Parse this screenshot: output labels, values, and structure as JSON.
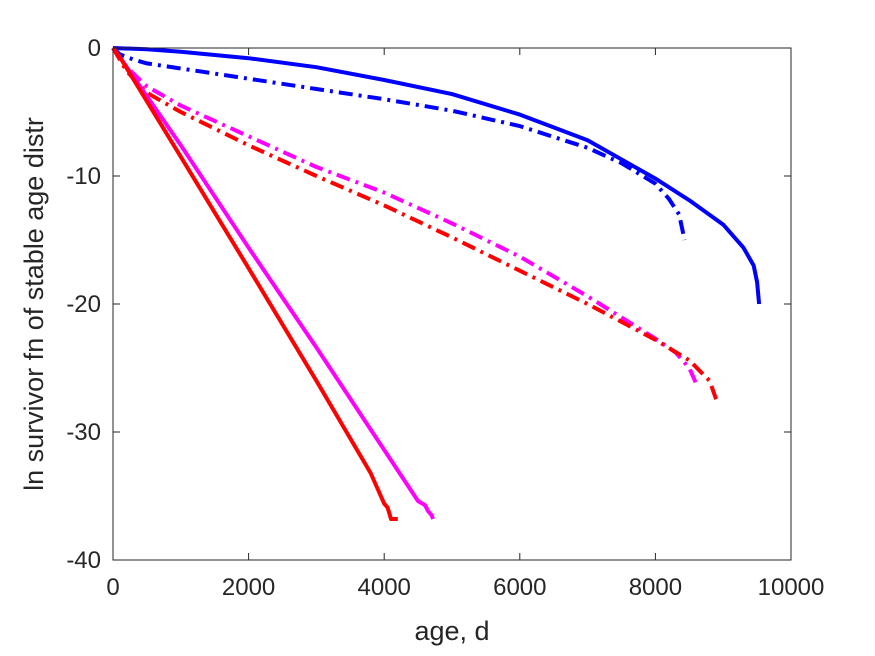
{
  "chart_data": {
    "type": "line",
    "title": "",
    "xlabel": "age, d",
    "ylabel": "ln survivor fn of stable age distr",
    "xlim": [
      0,
      10000
    ],
    "ylim": [
      -40,
      0
    ],
    "xticks": [
      0,
      2000,
      4000,
      6000,
      8000,
      10000
    ],
    "yticks": [
      -40,
      -30,
      -20,
      -10,
      0
    ],
    "xtick_labels": [
      "0",
      "2000",
      "4000",
      "6000",
      "8000",
      "10000"
    ],
    "ytick_labels": [
      "-40",
      "-30",
      "-20",
      "-10",
      "0"
    ],
    "grid": false,
    "legend": "none",
    "series": [
      {
        "color": "#0000ff",
        "style": "solid",
        "x": [
          0,
          500,
          1000,
          2000,
          3000,
          4000,
          5000,
          6000,
          7000,
          8000,
          8500,
          9000,
          9300,
          9450,
          9500,
          9530
        ],
        "y": [
          0,
          -0.1,
          -0.3,
          -0.8,
          -1.5,
          -2.5,
          -3.6,
          -5.2,
          -7.2,
          -10.2,
          -11.9,
          -13.8,
          -15.6,
          -17.0,
          -18.3,
          -20.0
        ]
      },
      {
        "color": "#0000ff",
        "style": "dashdot",
        "x": [
          0,
          100,
          300,
          500,
          1000,
          2000,
          3000,
          4000,
          5000,
          6000,
          7000,
          7500,
          8000,
          8200,
          8350,
          8430
        ],
        "y": [
          0,
          -0.5,
          -0.9,
          -1.2,
          -1.6,
          -2.4,
          -3.2,
          -4.0,
          -4.9,
          -6.1,
          -7.8,
          -9.0,
          -10.6,
          -11.8,
          -13.0,
          -15.0
        ]
      },
      {
        "color": "#ff00ff",
        "style": "dashdot",
        "x": [
          0,
          200,
          500,
          1000,
          2000,
          3000,
          4000,
          5000,
          6000,
          7000,
          8000,
          8300,
          8500,
          8600
        ],
        "y": [
          0,
          -1.5,
          -3.0,
          -4.5,
          -6.9,
          -9.3,
          -11.3,
          -13.7,
          -16.3,
          -19.4,
          -22.7,
          -23.8,
          -25.0,
          -26.2
        ]
      },
      {
        "color": "#ff0000",
        "style": "dashdot",
        "x": [
          0,
          200,
          500,
          1000,
          2000,
          3000,
          4000,
          5000,
          6000,
          7000,
          8000,
          8500,
          8800,
          8900
        ],
        "y": [
          0,
          -1.8,
          -3.5,
          -5.0,
          -7.6,
          -10.0,
          -12.3,
          -14.8,
          -17.4,
          -20.0,
          -22.8,
          -24.4,
          -26.0,
          -27.5
        ]
      },
      {
        "color": "#ff00ff",
        "style": "solid",
        "x": [
          0,
          100,
          1000,
          2000,
          3000,
          4000,
          4500,
          4600,
          4650,
          4700,
          4720
        ],
        "y": [
          0,
          -0.7,
          -7.6,
          -15.6,
          -23.4,
          -31.4,
          -35.4,
          -35.7,
          -36.2,
          -36.5,
          -36.8
        ]
      },
      {
        "color": "#ff0000",
        "style": "solid",
        "x": [
          0,
          100,
          1000,
          2000,
          3000,
          3800,
          3950,
          4000,
          4050,
          4100,
          4200
        ],
        "y": [
          0,
          -0.7,
          -8.5,
          -17.2,
          -26.0,
          -33.2,
          -35.0,
          -35.6,
          -35.9,
          -36.8,
          -36.8
        ]
      }
    ]
  }
}
